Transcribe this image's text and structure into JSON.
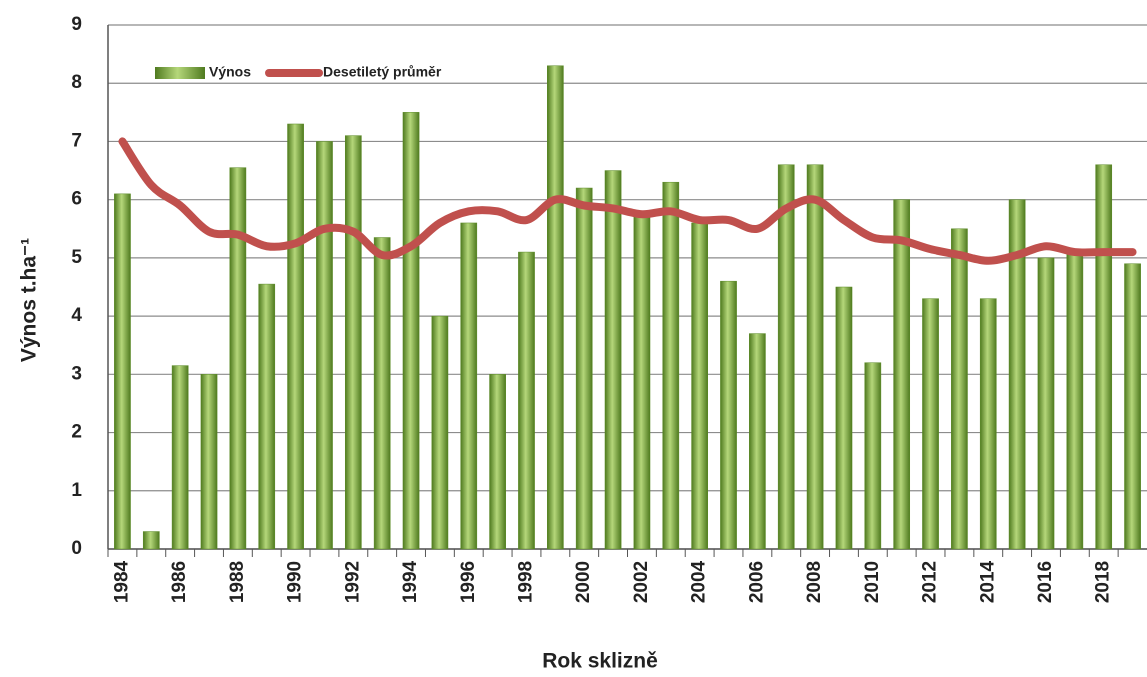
{
  "chart_data": {
    "type": "bar",
    "xlabel": "Rok sklizně",
    "ylabel": "Výnos t.ha⁻¹",
    "categories": [
      "1984",
      null,
      "1986",
      null,
      "1988",
      null,
      "1990",
      null,
      "1992",
      null,
      "1994",
      null,
      "1996",
      null,
      "1998",
      null,
      "2000",
      null,
      "2002",
      null,
      "2004",
      null,
      "2006",
      null,
      "2008",
      null,
      "2010",
      null,
      "2012",
      null,
      "2014",
      null,
      "2016",
      null,
      "2018",
      null
    ],
    "series": [
      {
        "name": "Výnos",
        "type": "bar",
        "color": "#77a83a",
        "values": [
          6.1,
          0.3,
          3.15,
          3.0,
          6.55,
          4.55,
          7.3,
          7.0,
          7.1,
          5.35,
          7.5,
          4.0,
          5.6,
          3.0,
          5.1,
          8.3,
          6.2,
          6.5,
          5.8,
          6.3,
          5.6,
          4.6,
          3.7,
          6.6,
          6.6,
          4.5,
          3.2,
          6.0,
          4.3,
          5.5,
          4.3,
          6.0,
          5.0,
          5.1,
          6.6,
          4.9
        ]
      },
      {
        "name": "Desetiletý průměr",
        "type": "line",
        "color": "#c0504d",
        "values": [
          7.0,
          6.25,
          5.9,
          5.45,
          5.4,
          5.2,
          5.25,
          5.5,
          5.45,
          5.05,
          5.2,
          5.6,
          5.8,
          5.8,
          5.65,
          6.0,
          5.9,
          5.85,
          5.75,
          5.8,
          5.65,
          5.65,
          5.5,
          5.85,
          6.0,
          5.65,
          5.35,
          5.3,
          5.15,
          5.05,
          4.95,
          5.05,
          5.2,
          5.1,
          5.1,
          5.1
        ]
      }
    ],
    "ylim": [
      0,
      9
    ],
    "yticks": [
      0,
      1,
      2,
      3,
      4,
      5,
      6,
      7,
      8,
      9
    ],
    "grid": true,
    "legend": "top-left"
  }
}
